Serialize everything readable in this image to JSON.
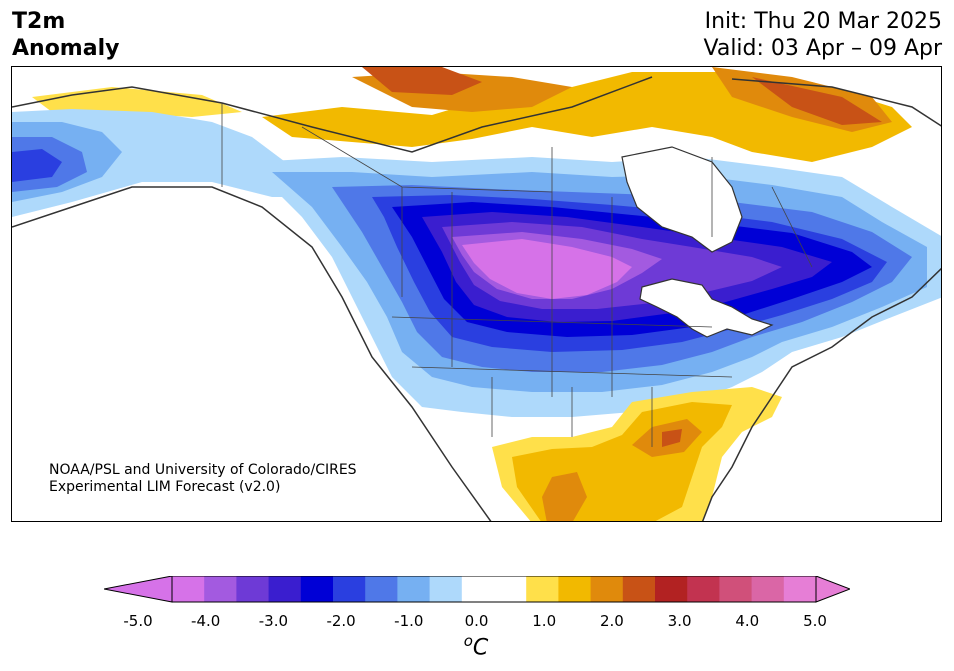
{
  "title": {
    "left_line1": "T2m",
    "left_line2": "Anomaly",
    "init": "Init: Thu 20 Mar 2025",
    "valid": "Valid: 03 Apr – 09 Apr"
  },
  "credit": {
    "line1": "NOAA/PSL and University of Colorado/CIRES",
    "line2": "Experimental LIM Forecast (v2.0)"
  },
  "colorbar": {
    "unit_sup": "o",
    "unit": "C",
    "ticks": [
      "-5.0",
      "-4.0",
      "-3.0",
      "-2.0",
      "-1.0",
      "0.0",
      "1.0",
      "2.0",
      "3.0",
      "4.0",
      "5.0"
    ],
    "colors": [
      "#d672e8",
      "#a35ae0",
      "#6e3ad6",
      "#3a1ecf",
      "#0000d6",
      "#2a3fe0",
      "#4f78e8",
      "#76b0f2",
      "#aed9fb",
      "#ffffff",
      "#ffffff",
      "#ffe04a",
      "#f2b900",
      "#e08a0c",
      "#c85216",
      "#b22222",
      "#c23350",
      "#d0507a",
      "#da66a6",
      "#e67ed6"
    ],
    "under_color": "#d672e8",
    "over_color": "#e67ed6"
  },
  "legend_colors": {
    "ocean": "#ffffff",
    "coast": "#333333",
    "borders": "#444444"
  }
}
